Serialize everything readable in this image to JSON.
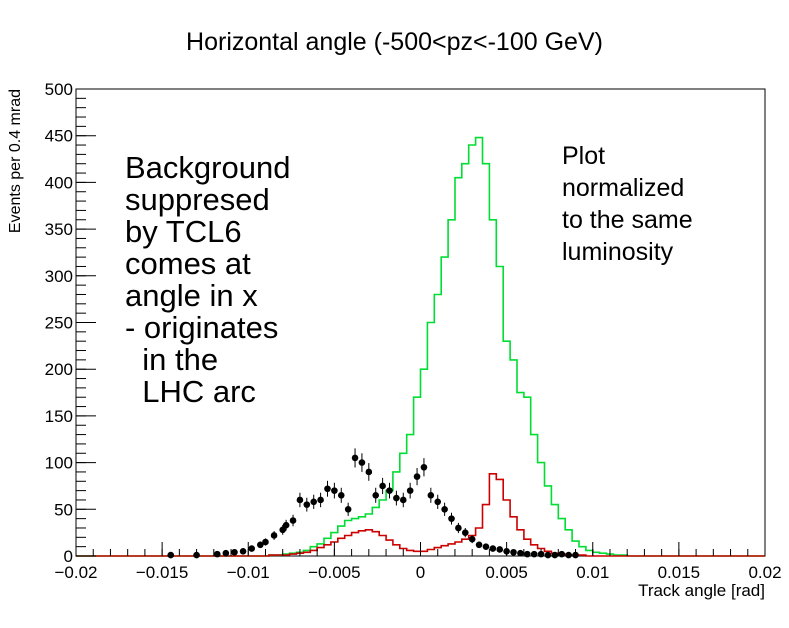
{
  "chart_data": {
    "type": "histogram",
    "title": "Horizontal angle (-500<pz<-100 GeV)",
    "xlabel": "Track angle [rad]",
    "ylabel": "Events per 0.4 mrad",
    "xlim": [
      -0.02,
      0.02
    ],
    "ylim": [
      0,
      500
    ],
    "xticks": [
      -0.02,
      -0.015,
      -0.01,
      -0.005,
      0,
      0.005,
      0.01,
      0.015,
      0.02
    ],
    "xtick_labels": [
      "−0.02",
      "−0.015",
      "−0.01",
      "−0.005",
      "0",
      "0.005",
      "0.01",
      "0.015",
      "0.02"
    ],
    "yticks": [
      0,
      50,
      100,
      150,
      200,
      250,
      300,
      350,
      400,
      450,
      500
    ],
    "ytick_labels": [
      "0",
      "50",
      "100",
      "150",
      "200",
      "250",
      "300",
      "350",
      "400",
      "450",
      "500"
    ],
    "annotations": [
      "Background\nsuppresed\nby TCL6\ncomes at\nangle in x\n- originates\n  in the\n  LHC arc",
      "Plot\nnormalized\nto the same\nluminosity"
    ],
    "series": [
      {
        "type": "step",
        "color": "#00dd33",
        "edges_start": -0.02,
        "bin_width": 0.0004,
        "values": [
          0,
          0,
          0,
          0,
          0,
          0,
          0,
          0,
          0,
          0,
          0,
          0,
          0,
          0,
          0,
          0,
          0,
          0,
          0,
          0,
          0,
          0,
          0,
          0,
          0,
          0,
          0,
          0,
          1,
          1,
          2,
          3,
          4,
          6,
          10,
          13,
          19,
          25,
          32,
          38,
          40,
          42,
          45,
          52,
          60,
          70,
          90,
          110,
          130,
          170,
          200,
          250,
          280,
          320,
          360,
          405,
          420,
          440,
          448,
          420,
          360,
          310,
          230,
          210,
          175,
          170,
          130,
          100,
          75,
          55,
          40,
          28,
          16,
          10,
          6,
          4,
          3,
          2,
          1,
          1,
          0,
          0,
          0,
          0,
          0,
          0,
          0,
          0,
          0,
          0,
          0,
          0,
          0,
          0,
          0,
          0,
          0,
          0,
          0,
          0
        ]
      },
      {
        "type": "step",
        "color": "#cc0000",
        "edges_start": -0.02,
        "bin_width": 0.0004,
        "values": [
          0,
          0,
          0,
          0,
          0,
          0,
          0,
          0,
          0,
          0,
          0,
          0,
          0,
          0,
          0,
          0,
          0,
          0,
          0,
          0,
          0,
          0,
          0,
          0,
          0,
          0,
          0,
          0,
          1,
          1,
          1,
          2,
          3,
          4,
          6,
          9,
          12,
          15,
          19,
          22,
          25,
          27,
          28,
          26,
          22,
          17,
          12,
          8,
          6,
          5,
          5,
          7,
          9,
          11,
          13,
          15,
          18,
          22,
          30,
          55,
          88,
          82,
          60,
          42,
          28,
          18,
          12,
          8,
          5,
          3,
          2,
          1,
          1,
          1,
          0,
          0,
          0,
          0,
          0,
          0,
          0,
          0,
          0,
          0,
          0,
          0,
          0,
          0,
          0,
          0,
          0,
          0,
          0,
          0,
          0,
          0,
          0,
          0,
          0,
          0
        ]
      },
      {
        "type": "scatter",
        "color": "#000000",
        "x": [
          -0.0145,
          -0.013,
          -0.0118,
          -0.0113,
          -0.0108,
          -0.0103,
          -0.0098,
          -0.0093,
          -0.009,
          -0.0085,
          -0.008,
          -0.0078,
          -0.0074,
          -0.007,
          -0.0066,
          -0.0062,
          -0.0058,
          -0.0054,
          -0.005,
          -0.0046,
          -0.0042,
          -0.0038,
          -0.0034,
          -0.003,
          -0.0026,
          -0.0022,
          -0.0018,
          -0.0014,
          -0.001,
          -0.0006,
          -0.0002,
          0.0002,
          0.0006,
          0.001,
          0.0014,
          0.0018,
          0.0022,
          0.0026,
          0.003,
          0.0034,
          0.0038,
          0.0042,
          0.0046,
          0.005,
          0.0054,
          0.0058,
          0.0062,
          0.0066,
          0.007,
          0.0074,
          0.0078,
          0.0082,
          0.0086,
          0.009
        ],
        "y": [
          1,
          1,
          2,
          3,
          4,
          5,
          8,
          12,
          15,
          22,
          28,
          33,
          38,
          60,
          55,
          58,
          60,
          72,
          70,
          65,
          50,
          105,
          100,
          90,
          65,
          75,
          70,
          62,
          60,
          70,
          85,
          95,
          65,
          58,
          50,
          40,
          30,
          25,
          18,
          12,
          10,
          8,
          7,
          5,
          4,
          3,
          2,
          2,
          2,
          1,
          1,
          2,
          1,
          1
        ]
      }
    ]
  }
}
